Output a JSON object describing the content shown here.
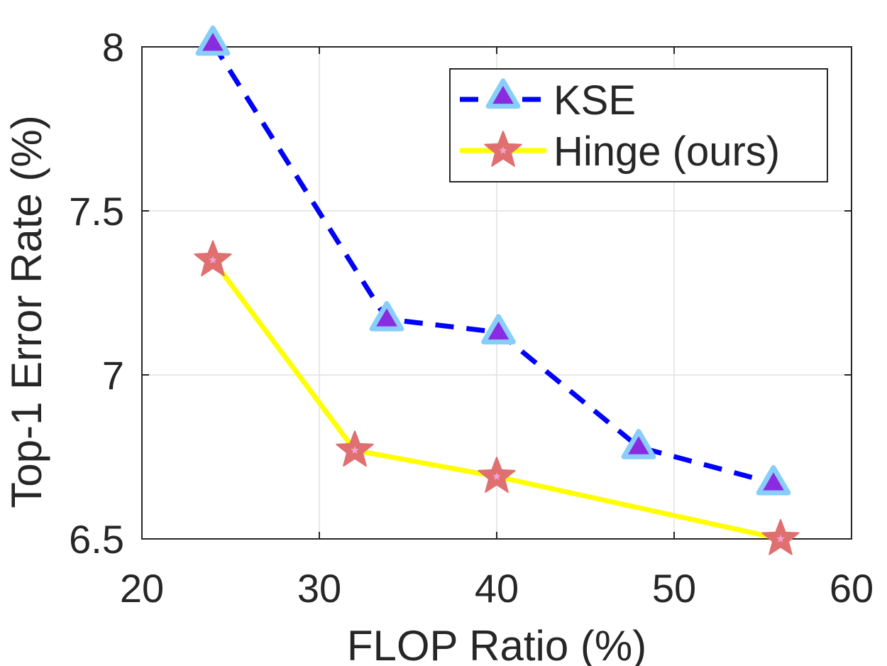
{
  "chart_data": {
    "type": "line",
    "title": "",
    "xlabel": "FLOP Ratio (%)",
    "ylabel": "Top-1 Error Rate (%)",
    "xlim": [
      20,
      60
    ],
    "ylim": [
      6.5,
      8.0
    ],
    "xticks": [
      20,
      30,
      40,
      50,
      60
    ],
    "xtick_labels": [
      "20",
      "30",
      "40",
      "50",
      "60"
    ],
    "yticks": [
      6.5,
      7.0,
      7.5,
      8.0
    ],
    "ytick_labels": [
      "6.5",
      "7",
      "7.5",
      "8"
    ],
    "grid": true,
    "legend_position": "top-right",
    "series": [
      {
        "name": "KSE",
        "x": [
          24,
          33.8,
          40.1,
          48,
          55.6
        ],
        "y": [
          8.01,
          7.17,
          7.13,
          6.78,
          6.67
        ],
        "line_color": "#0000ff",
        "line_style": "dashed",
        "marker": "triangle",
        "marker_fill": "#8a2be2",
        "marker_edge": "#87cefa"
      },
      {
        "name": "Hinge (ours)",
        "x": [
          24,
          32,
          40,
          56
        ],
        "y": [
          7.35,
          6.77,
          6.69,
          6.5
        ],
        "line_color": "#ffff00",
        "line_style": "solid",
        "marker": "star",
        "marker_fill": "#e07070",
        "marker_edge": "#e07070"
      }
    ]
  }
}
